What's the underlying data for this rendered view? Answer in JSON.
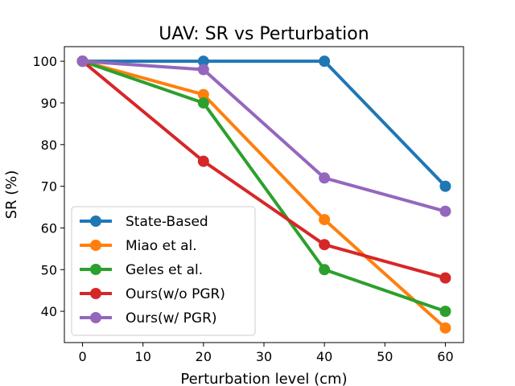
{
  "chart_data": {
    "type": "line",
    "title": "UAV: SR vs Perturbation",
    "xlabel": "Perturbation level (cm)",
    "ylabel": "SR (%)",
    "x": [
      0,
      20,
      40,
      60
    ],
    "xlim": [
      -3,
      63
    ],
    "ylim": [
      32.5,
      103.5
    ],
    "xticks": [
      0,
      10,
      20,
      30,
      40,
      50,
      60
    ],
    "yticks": [
      40,
      50,
      60,
      70,
      80,
      90,
      100
    ],
    "legend_position": "lower-left",
    "grid": false,
    "series": [
      {
        "name": "State-Based",
        "color": "#1f77b4",
        "values": [
          100,
          100,
          100,
          70
        ]
      },
      {
        "name": "Miao et al.",
        "color": "#ff7f0e",
        "values": [
          100,
          92,
          62,
          36
        ]
      },
      {
        "name": "Geles et al.",
        "color": "#2ca02c",
        "values": [
          100,
          90,
          50,
          40
        ]
      },
      {
        "name": "Ours(w/o PGR)",
        "color": "#d62728",
        "values": [
          100,
          76,
          56,
          48
        ]
      },
      {
        "name": "Ours(w/ PGR)",
        "color": "#9467bd",
        "values": [
          100,
          98,
          72,
          64
        ]
      }
    ]
  }
}
